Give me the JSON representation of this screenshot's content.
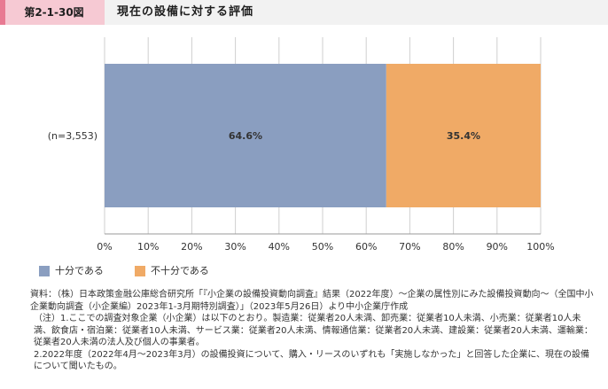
{
  "header": {
    "figure_number": "第2-1-30図",
    "title": "現在の設備に対する評価"
  },
  "chart_data": {
    "type": "bar",
    "orientation": "horizontal",
    "stacked": true,
    "categories": [
      "(n=3,553)"
    ],
    "series": [
      {
        "name": "十分である",
        "values": [
          64.6
        ],
        "label": "64.6%",
        "color": "#8a9ec0"
      },
      {
        "name": "不十分である",
        "values": [
          35.4
        ],
        "label": "35.4%",
        "color": "#f0aa66"
      }
    ],
    "xlim": [
      0,
      100
    ],
    "xticks": [
      "0%",
      "10%",
      "20%",
      "30%",
      "40%",
      "50%",
      "60%",
      "70%",
      "80%",
      "90%",
      "100%"
    ],
    "grid": true,
    "legend_position": "bottom-left"
  },
  "colors": {
    "header_band": "#f2f2f2",
    "badge": "#e87a92",
    "badge_light": "#f6c9d3",
    "grid": "#cccccc"
  },
  "notes": {
    "source": "資料：（株）日本政策金融公庫総合研究所「『小企業の設備投資動向調査』結果（2022年度）～企業の属性別にみた設備投資動向～（全国中小企業動向調査（小企業編）2023年1-3月期特別調査）」（2023年5月26日）より中小企業庁作成",
    "note1": "（注）1.ここでの調査対象企業（小企業）は以下のとおり。製造業：従業者20人未満、卸売業：従業者10人未満、小売業：従業者10人未満、飲食店・宿泊業：従業者10人未満、サービス業：従業者20人未満、情報通信業：従業者20人未満、建設業：従業者20人未満、運輸業：従業者20人未満の法人及び個人の事業者。",
    "note2": "2.2022年度（2022年4月～2023年3月）の設備投資について、購入・リースのいずれも「実施しなかった」と回答した企業に、現在の設備について聞いたもの。"
  }
}
